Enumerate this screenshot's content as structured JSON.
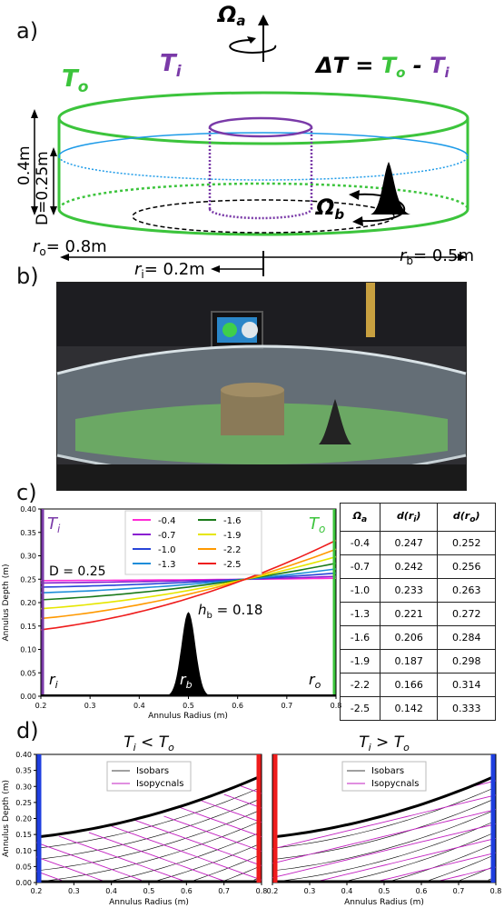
{
  "panels": {
    "a": "a)",
    "b": "b)",
    "c": "c)",
    "d": "d)"
  },
  "panel_a": {
    "omega_a": "Ω",
    "omega_a_sub": "a",
    "omega_b": "Ω",
    "omega_b_sub": "b",
    "T_o": "T",
    "T_o_sub": "o",
    "T_i": "T",
    "T_i_sub": "i",
    "delta_T": "ΔT = ",
    "delta_T_o": "T",
    "delta_T_o_sub": "o",
    "delta_T_minus": " - ",
    "delta_T_i": "T",
    "delta_T_i_sub": "i",
    "depth_total": "0.4m",
    "depth_D": "D=0.25m",
    "r_o": "r",
    "r_o_sub": "o",
    "r_o_val": "= 0.8m",
    "r_i": "r",
    "r_i_sub": "i",
    "r_i_val": "= 0.2m",
    "r_b": "r",
    "r_b_sub": "b",
    "r_b_val": "= 0.5m",
    "colors": {
      "outer": "#3cc43c",
      "inner": "#7a3aa8",
      "water": "#1e9be8"
    }
  },
  "panel_c": {
    "chart_data": {
      "type": "line",
      "xlabel": "Annulus Radius (m)",
      "ylabel": "Annulus Depth (m)",
      "xlim": [
        0.2,
        0.8
      ],
      "ylim": [
        0.0,
        0.4
      ],
      "xticks": [
        "0.2",
        "0.3",
        "0.4",
        "0.5",
        "0.6",
        "0.7",
        "0.8"
      ],
      "yticks": [
        "0.00",
        "0.05",
        "0.10",
        "0.15",
        "0.20",
        "0.25",
        "0.30",
        "0.35",
        "0.40"
      ],
      "legend_position": "top-center",
      "series": [
        {
          "name": "-0.4",
          "color": "#ff2bd6",
          "d_ri": 0.247,
          "d_ro": 0.252
        },
        {
          "name": "-0.7",
          "color": "#8a1fd1",
          "d_ri": 0.242,
          "d_ro": 0.256
        },
        {
          "name": "-1.0",
          "color": "#2844d8",
          "d_ri": 0.233,
          "d_ro": 0.263
        },
        {
          "name": "-1.3",
          "color": "#1e8dd9",
          "d_ri": 0.221,
          "d_ro": 0.272
        },
        {
          "name": "-1.6",
          "color": "#1a7a1a",
          "d_ri": 0.206,
          "d_ro": 0.284
        },
        {
          "name": "-1.9",
          "color": "#e6e600",
          "d_ri": 0.187,
          "d_ro": 0.298
        },
        {
          "name": "-2.2",
          "color": "#ff9900",
          "d_ri": 0.166,
          "d_ro": 0.314
        },
        {
          "name": "-2.5",
          "color": "#ee1c1c",
          "d_ri": 0.142,
          "d_ro": 0.333
        }
      ],
      "bump": {
        "center": 0.5,
        "height": 0.18
      },
      "annotations": {
        "T_i": "T",
        "T_i_sub": "i",
        "T_o": "T",
        "T_o_sub": "o",
        "D": "D = 0.25",
        "h_b": "h",
        "h_b_sub": "b",
        "h_b_val": " = 0.18",
        "r_i": "r",
        "r_i_sub": "i",
        "r_b": "r",
        "r_b_sub": "b",
        "r_o": "r",
        "r_o_sub": "o"
      }
    },
    "table": {
      "headers": [
        "Ω",
        "d(r",
        "d(r"
      ],
      "header_subs": [
        "a",
        "i",
        "o"
      ],
      "rows": [
        [
          "-0.4",
          "0.247",
          "0.252"
        ],
        [
          "-0.7",
          "0.242",
          "0.256"
        ],
        [
          "-1.0",
          "0.233",
          "0.263"
        ],
        [
          "-1.3",
          "0.221",
          "0.272"
        ],
        [
          "-1.6",
          "0.206",
          "0.284"
        ],
        [
          "-1.9",
          "0.187",
          "0.298"
        ],
        [
          "-2.2",
          "0.166",
          "0.314"
        ],
        [
          "-2.5",
          "0.142",
          "0.333"
        ]
      ]
    }
  },
  "panel_d": {
    "chart_data": [
      {
        "type": "line",
        "title": "T",
        "title_sub1": "i",
        "title_op": " < T",
        "title_sub2": "o",
        "xlabel": "Annulus Radius (m)",
        "ylabel": "Annulus Depth (m)",
        "xlim": [
          0.2,
          0.8
        ],
        "ylim": [
          0.0,
          0.4
        ],
        "xticks": [
          "0.2",
          "0.3",
          "0.4",
          "0.5",
          "0.6",
          "0.7",
          "0.8"
        ],
        "yticks": [
          "0.00",
          "0.05",
          "0.10",
          "0.15",
          "0.20",
          "0.25",
          "0.30",
          "0.35",
          "0.40"
        ],
        "legend": [
          "Isobars",
          "Isopycnals"
        ],
        "surface": {
          "d_ri": 0.142,
          "d_ro": 0.333
        },
        "left_wall_color": "#1f3fe0",
        "right_wall_color": "#ee1c1c"
      },
      {
        "type": "line",
        "title": "T",
        "title_sub1": "i",
        "title_op": " > T",
        "title_sub2": "o",
        "xlabel": "Annulus Radius (m)",
        "xlim": [
          0.2,
          0.8
        ],
        "ylim": [
          0.0,
          0.4
        ],
        "xticks": [
          "0.2",
          "0.3",
          "0.4",
          "0.5",
          "0.6",
          "0.7",
          "0.8"
        ],
        "legend": [
          "Isobars",
          "Isopycnals"
        ],
        "surface": {
          "d_ri": 0.142,
          "d_ro": 0.333
        },
        "left_wall_color": "#ee1c1c",
        "right_wall_color": "#1f3fe0"
      }
    ]
  }
}
